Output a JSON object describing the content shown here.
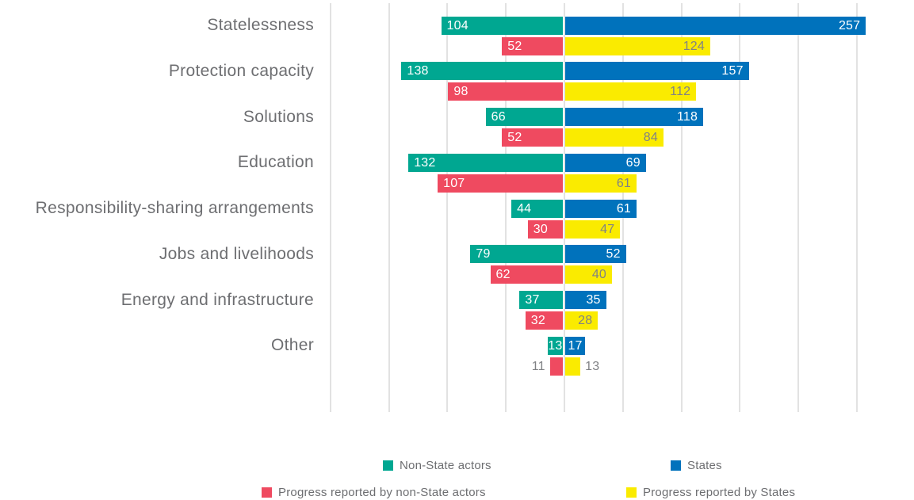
{
  "chart_data": {
    "type": "bar",
    "variant": "diverging-grouped-horizontal",
    "title": "",
    "categories": [
      "Statelessness",
      "Protection capacity",
      "Solutions",
      "Education",
      "Responsibility-sharing arrangements",
      "Jobs and livelihoods",
      "Energy and infrastructure",
      "Other"
    ],
    "series": [
      {
        "name": "Non-State actors",
        "color": "#00A791",
        "side": "left",
        "tier": "top",
        "inside_label_color": "#ffffff",
        "values": [
          104,
          138,
          66,
          132,
          44,
          79,
          37,
          13
        ]
      },
      {
        "name": "States",
        "color": "#0072BC",
        "side": "right",
        "tier": "top",
        "inside_label_color": "#ffffff",
        "values": [
          257,
          157,
          118,
          69,
          61,
          52,
          35,
          17
        ]
      },
      {
        "name": "Progress reported by non-State actors",
        "color": "#EF4A60",
        "side": "left",
        "tier": "bottom",
        "inside_label_color": "#ffffff",
        "values": [
          52,
          98,
          52,
          107,
          30,
          62,
          32,
          11
        ]
      },
      {
        "name": "Progress reported by States",
        "color": "#FAEB00",
        "side": "right",
        "tier": "bottom",
        "inside_label_color": "#808285",
        "values": [
          124,
          112,
          84,
          61,
          47,
          40,
          28,
          13
        ]
      }
    ],
    "axis": {
      "zero_baseline": true,
      "units_per_gridline": 50,
      "gridline_values": [
        -200,
        -150,
        -100,
        -50,
        0,
        50,
        100,
        150,
        200,
        250
      ],
      "grid": "vertical-lines-only",
      "tick_labels_visible": false
    },
    "legend": {
      "position": "bottom",
      "rows": [
        [
          "Non-State actors",
          "States"
        ],
        [
          "Progress reported by non-State actors",
          "Progress reported by States"
        ]
      ]
    },
    "colors": {
      "category_label": "#6d6e71",
      "outside_value_label": "#808285",
      "gridline": "#e2e2e2",
      "background": "#ffffff"
    }
  }
}
